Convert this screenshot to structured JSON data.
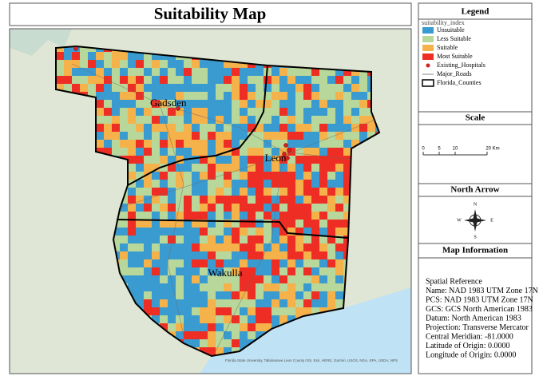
{
  "title": "Suitability Map",
  "legend": {
    "title": "Legend",
    "field": "suitability_index",
    "items": [
      {
        "label": "Unsuitable",
        "color": "#3a9bd0"
      },
      {
        "label": "Less Suitable",
        "color": "#b7d89a"
      },
      {
        "label": "Suitable",
        "color": "#f5b14a"
      },
      {
        "label": "Most Suitable",
        "color": "#ee2e24"
      }
    ],
    "layers": [
      "Existing_Hospitals",
      "Major_Roads",
      "Florida_Counties"
    ]
  },
  "scale": {
    "title": "Scale",
    "labels": [
      "0",
      "5",
      "10",
      "20 Km"
    ]
  },
  "north_arrow": {
    "title": "North Arrow",
    "directions": [
      "N",
      "E",
      "S",
      "W"
    ]
  },
  "map_information": {
    "title": "Map Information",
    "lines": [
      "Spatial Reference",
      "Name: NAD 1983 UTM Zone 17N",
      "PCS: NAD 1983 UTM Zone 17N",
      "GCS: GCS North American 1983",
      "Datum: North American 1983",
      "Projection: Transverse Mercator",
      "Central Meridian: -81.0000",
      "Latitude of Origin: 0.0000",
      "Longitude of Origin: 0.0000"
    ]
  },
  "map": {
    "counties": [
      "Gadsden",
      "Leon",
      "Wakulla"
    ],
    "attribution": "Florida State University, Tallahassee Leon County GIS, Esri, HERE, Garmin, USGS, NGA, EPA, USDA, NPS"
  }
}
